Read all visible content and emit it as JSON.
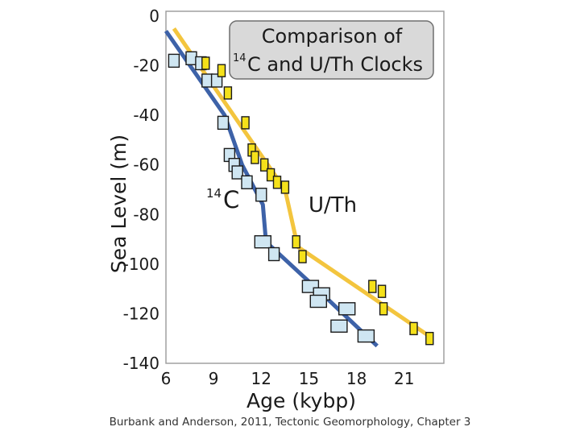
{
  "chart_data": {
    "type": "scatter",
    "title_line1": "Comparison of",
    "title_sup": "14",
    "title_line2": "C and U/Th Clocks",
    "xlabel": "Age (kybp)",
    "ylabel": "Sea Level (m)",
    "x_ticks": [
      "6",
      "9",
      "12",
      "15",
      "18",
      "21"
    ],
    "y_ticks": [
      "0",
      "-20",
      "-40",
      "-60",
      "-80",
      "-100",
      "-120",
      "-140"
    ],
    "xlim": [
      6,
      23.5
    ],
    "ylim": [
      -140,
      0
    ],
    "series": [
      {
        "label_sup": "14",
        "label": "C",
        "color": "#3d62a8",
        "marker_fill": "#cfe6f2",
        "trend": [
          [
            6,
            -6
          ],
          [
            9.7,
            -40
          ],
          [
            10.8,
            -60
          ],
          [
            12.1,
            -76
          ],
          [
            12.3,
            -91
          ],
          [
            15.5,
            -110
          ],
          [
            19.3,
            -133
          ]
        ],
        "points": [
          {
            "x": 6.5,
            "y": -18,
            "big": false
          },
          {
            "x": 7.6,
            "y": -17,
            "big": false
          },
          {
            "x": 8.2,
            "y": -19,
            "big": false
          },
          {
            "x": 8.6,
            "y": -26,
            "big": false
          },
          {
            "x": 9.2,
            "y": -26,
            "big": false
          },
          {
            "x": 9.6,
            "y": -43,
            "big": false
          },
          {
            "x": 10.0,
            "y": -56,
            "big": false
          },
          {
            "x": 10.3,
            "y": -60,
            "big": false
          },
          {
            "x": 10.5,
            "y": -63,
            "big": false
          },
          {
            "x": 11.1,
            "y": -67,
            "big": false
          },
          {
            "x": 12.0,
            "y": -72,
            "big": false
          },
          {
            "x": 12.1,
            "y": -91,
            "big": true
          },
          {
            "x": 12.8,
            "y": -96,
            "big": false
          },
          {
            "x": 15.1,
            "y": -109,
            "big": true
          },
          {
            "x": 15.8,
            "y": -112,
            "big": true
          },
          {
            "x": 15.6,
            "y": -115,
            "big": true
          },
          {
            "x": 17.4,
            "y": -118,
            "big": true
          },
          {
            "x": 16.9,
            "y": -125,
            "big": true
          },
          {
            "x": 18.6,
            "y": -129,
            "big": true
          }
        ]
      },
      {
        "label": "U/Th",
        "color": "#f3c53e",
        "marker_fill": "#f5e11a",
        "trend": [
          [
            6.5,
            -5
          ],
          [
            10.8,
            -45
          ],
          [
            13.5,
            -70
          ],
          [
            14.3,
            -93
          ],
          [
            22.8,
            -130
          ]
        ],
        "points": [
          {
            "x": 8.5,
            "y": -19,
            "big": false
          },
          {
            "x": 9.5,
            "y": -22,
            "big": false
          },
          {
            "x": 9.9,
            "y": -31,
            "big": false
          },
          {
            "x": 11.0,
            "y": -43,
            "big": false
          },
          {
            "x": 11.4,
            "y": -54,
            "big": false
          },
          {
            "x": 11.6,
            "y": -57,
            "big": false
          },
          {
            "x": 12.2,
            "y": -60,
            "big": false
          },
          {
            "x": 12.6,
            "y": -64,
            "big": false
          },
          {
            "x": 13.0,
            "y": -67,
            "big": false
          },
          {
            "x": 13.5,
            "y": -69,
            "big": false
          },
          {
            "x": 14.2,
            "y": -91,
            "big": false
          },
          {
            "x": 14.6,
            "y": -97,
            "big": false
          },
          {
            "x": 19.0,
            "y": -109,
            "big": false
          },
          {
            "x": 19.6,
            "y": -111,
            "big": false
          },
          {
            "x": 19.7,
            "y": -118,
            "big": false
          },
          {
            "x": 21.6,
            "y": -126,
            "big": false
          },
          {
            "x": 22.6,
            "y": -130,
            "big": false
          }
        ]
      }
    ]
  },
  "caption": "Burbank and Anderson, 2011, Tectonic Geomorphology, Chapter 3"
}
